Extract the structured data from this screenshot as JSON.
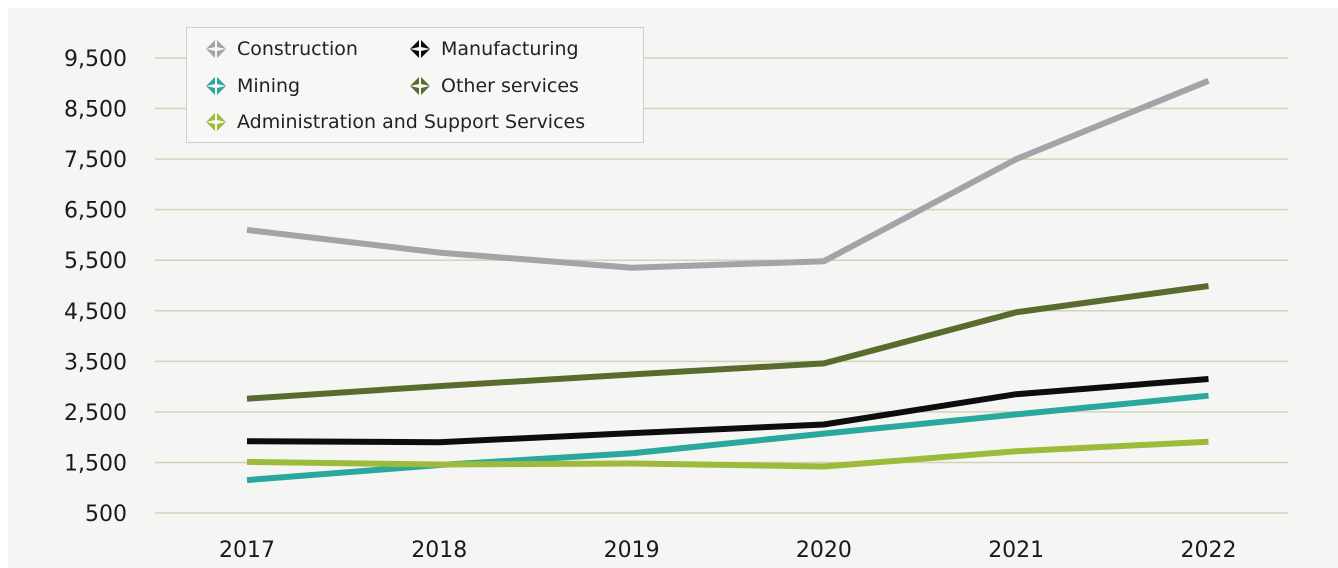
{
  "chart_data": {
    "type": "line",
    "x": [
      "2017",
      "2018",
      "2019",
      "2020",
      "2021",
      "2022"
    ],
    "yticks": [
      "9,500",
      "8,500",
      "7,500",
      "6,500",
      "5,500",
      "4,500",
      "3,500",
      "2,500",
      "1,500",
      "500"
    ],
    "ylim": [
      500,
      9500
    ],
    "grid": true,
    "legend_position": "top-left",
    "series": [
      {
        "name": "Construction",
        "color": "#a3a3a8",
        "values": [
          6100,
          5650,
          5350,
          5480,
          7500,
          9050
        ]
      },
      {
        "name": "Manufacturing",
        "color": "#0d0d0d",
        "values": [
          1920,
          1900,
          2080,
          2250,
          2850,
          3150
        ]
      },
      {
        "name": "Mining",
        "color": "#2aa89e",
        "values": [
          1150,
          1450,
          1680,
          2070,
          2450,
          2820
        ]
      },
      {
        "name": "Other services",
        "color": "#5a6b2e",
        "values": [
          2760,
          3010,
          3240,
          3460,
          4470,
          4990
        ]
      },
      {
        "name": "Administration and Support Services",
        "color": "#9dbb3a",
        "values": [
          1510,
          1460,
          1480,
          1420,
          1720,
          1910
        ]
      }
    ]
  }
}
